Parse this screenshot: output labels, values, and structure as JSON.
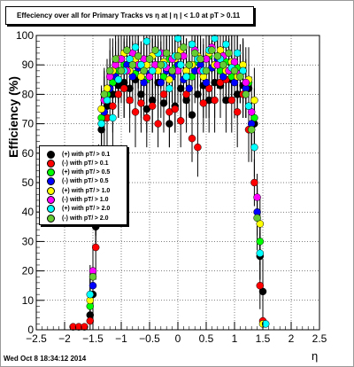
{
  "date_stamp": "Wed Oct  8 18:34:12 2014",
  "chart_data": {
    "type": "scatter",
    "title": "Effeciency over all for Primary Tracks vs   η at | η | < 1.0 at pT > 0.11",
    "xlabel": "η",
    "ylabel": "Efficiency (%)",
    "xlim": [
      -2.5,
      2.5
    ],
    "ylim": [
      0,
      100
    ],
    "xticks": [
      -2.5,
      -2,
      -1.5,
      -1,
      -0.5,
      0,
      0.5,
      1,
      1.5,
      2,
      2.5
    ],
    "xtick_labels": [
      "−2.5",
      "−2",
      "−1.5",
      "−1",
      "−0.5",
      "0",
      "0.5",
      "1",
      "1.5",
      "2",
      "2.5"
    ],
    "yticks": [
      0,
      10,
      20,
      30,
      40,
      50,
      60,
      70,
      80,
      90,
      100
    ],
    "ytick_labels": [
      "0",
      "10",
      "20",
      "30",
      "40",
      "50",
      "60",
      "70",
      "80",
      "90",
      "100"
    ],
    "grid": true,
    "legend_position": "left-middle",
    "series": [
      {
        "name": "(+) with pT/ > 0.1",
        "color": "#000000",
        "points": [
          [
            -1.55,
            5
          ],
          [
            -1.5,
            12
          ],
          [
            -1.45,
            35
          ],
          [
            -1.35,
            68
          ],
          [
            -1.25,
            76
          ],
          [
            -1.15,
            80
          ],
          [
            -1.05,
            83
          ],
          [
            -0.95,
            84
          ],
          [
            -0.85,
            82
          ],
          [
            -0.75,
            85
          ],
          [
            -0.65,
            80
          ],
          [
            -0.55,
            75
          ],
          [
            -0.45,
            78
          ],
          [
            -0.35,
            84
          ],
          [
            -0.25,
            77
          ],
          [
            -0.15,
            70
          ],
          [
            -0.05,
            76
          ],
          [
            0.05,
            82
          ],
          [
            0.15,
            78
          ],
          [
            0.25,
            73
          ],
          [
            0.35,
            80
          ],
          [
            0.45,
            83
          ],
          [
            0.55,
            78
          ],
          [
            0.65,
            84
          ],
          [
            0.75,
            83
          ],
          [
            0.85,
            78
          ],
          [
            0.95,
            85
          ],
          [
            1.05,
            80
          ],
          [
            1.15,
            83
          ],
          [
            1.25,
            82
          ],
          [
            1.35,
            70
          ],
          [
            1.45,
            25
          ],
          [
            1.5,
            13
          ]
        ]
      },
      {
        "name": "(-) with pT/ > 0.1",
        "color": "#ff0000",
        "points": [
          [
            -1.85,
            1
          ],
          [
            -1.75,
            1
          ],
          [
            -1.65,
            1
          ],
          [
            -1.55,
            3
          ],
          [
            -1.45,
            28
          ],
          [
            -1.35,
            60
          ],
          [
            -1.25,
            72
          ],
          [
            -1.15,
            76
          ],
          [
            -1.05,
            80
          ],
          [
            -0.95,
            82
          ],
          [
            -0.85,
            78
          ],
          [
            -0.75,
            74
          ],
          [
            -0.65,
            77
          ],
          [
            -0.55,
            72
          ],
          [
            -0.45,
            76
          ],
          [
            -0.35,
            70
          ],
          [
            -0.25,
            80
          ],
          [
            -0.15,
            74
          ],
          [
            -0.05,
            75
          ],
          [
            0.05,
            71
          ],
          [
            0.15,
            80
          ],
          [
            0.25,
            65
          ],
          [
            0.35,
            62
          ],
          [
            0.45,
            77
          ],
          [
            0.55,
            82
          ],
          [
            0.65,
            78
          ],
          [
            0.75,
            84
          ],
          [
            0.85,
            85
          ],
          [
            0.95,
            78
          ],
          [
            1.05,
            74
          ],
          [
            1.15,
            80
          ],
          [
            1.25,
            68
          ],
          [
            1.35,
            50
          ],
          [
            1.45,
            15
          ],
          [
            1.5,
            3
          ]
        ]
      },
      {
        "name": "(+) with pT/ > 0.5",
        "color": "#00ff00",
        "points": [
          [
            -1.55,
            8
          ],
          [
            -1.45,
            40
          ],
          [
            -1.35,
            72
          ],
          [
            -1.25,
            80
          ],
          [
            -1.15,
            84
          ],
          [
            -1.05,
            88
          ],
          [
            -0.95,
            90
          ],
          [
            -0.85,
            92
          ],
          [
            -0.75,
            87
          ],
          [
            -0.65,
            90
          ],
          [
            -0.55,
            85
          ],
          [
            -0.45,
            88
          ],
          [
            -0.35,
            90
          ],
          [
            -0.25,
            86
          ],
          [
            -0.15,
            92
          ],
          [
            -0.05,
            89
          ],
          [
            0.05,
            94
          ],
          [
            0.15,
            88
          ],
          [
            0.25,
            86
          ],
          [
            0.35,
            91
          ],
          [
            0.45,
            87
          ],
          [
            0.55,
            93
          ],
          [
            0.65,
            90
          ],
          [
            0.75,
            88
          ],
          [
            0.85,
            91
          ],
          [
            0.95,
            86
          ],
          [
            1.05,
            89
          ],
          [
            1.15,
            88
          ],
          [
            1.25,
            84
          ],
          [
            1.35,
            72
          ],
          [
            1.45,
            30
          ]
        ]
      },
      {
        "name": "(-) with pT/ > 0.5",
        "color": "#0000ff",
        "points": [
          [
            -1.5,
            15
          ],
          [
            -1.4,
            50
          ],
          [
            -1.3,
            74
          ],
          [
            -1.2,
            82
          ],
          [
            -1.1,
            86
          ],
          [
            -1.0,
            88
          ],
          [
            -0.9,
            90
          ],
          [
            -0.8,
            86
          ],
          [
            -0.7,
            89
          ],
          [
            -0.6,
            84
          ],
          [
            -0.5,
            87
          ],
          [
            -0.4,
            89
          ],
          [
            -0.3,
            84
          ],
          [
            -0.2,
            88
          ],
          [
            -0.1,
            86
          ],
          [
            0.0,
            90
          ],
          [
            0.1,
            85
          ],
          [
            0.2,
            82
          ],
          [
            0.3,
            88
          ],
          [
            0.4,
            90
          ],
          [
            0.5,
            84
          ],
          [
            0.6,
            89
          ],
          [
            0.7,
            92
          ],
          [
            0.8,
            86
          ],
          [
            0.9,
            88
          ],
          [
            1.0,
            84
          ],
          [
            1.1,
            86
          ],
          [
            1.2,
            82
          ],
          [
            1.3,
            70
          ],
          [
            1.4,
            40
          ]
        ]
      },
      {
        "name": "(+) with pT/ > 1.0",
        "color": "#ffff00",
        "points": [
          [
            -1.55,
            10
          ],
          [
            -1.45,
            42
          ],
          [
            -1.35,
            75
          ],
          [
            -1.25,
            82
          ],
          [
            -1.15,
            88
          ],
          [
            -1.05,
            92
          ],
          [
            -0.95,
            94
          ],
          [
            -0.85,
            88
          ],
          [
            -0.75,
            92
          ],
          [
            -0.65,
            86
          ],
          [
            -0.55,
            90
          ],
          [
            -0.45,
            93
          ],
          [
            -0.35,
            88
          ],
          [
            -0.25,
            91
          ],
          [
            -0.15,
            85
          ],
          [
            -0.05,
            92
          ],
          [
            0.05,
            95
          ],
          [
            0.15,
            88
          ],
          [
            0.25,
            90
          ],
          [
            0.35,
            93
          ],
          [
            0.45,
            86
          ],
          [
            0.55,
            94
          ],
          [
            0.65,
            90
          ],
          [
            0.75,
            95
          ],
          [
            0.85,
            88
          ],
          [
            0.95,
            91
          ],
          [
            1.05,
            86
          ],
          [
            1.15,
            90
          ],
          [
            1.25,
            85
          ],
          [
            1.35,
            78
          ],
          [
            1.45,
            36
          ],
          [
            1.5,
            2
          ]
        ]
      },
      {
        "name": "(-) with pT/ > 1.0",
        "color": "#ff00ff",
        "points": [
          [
            -1.5,
            20
          ],
          [
            -1.4,
            55
          ],
          [
            -1.3,
            78
          ],
          [
            -1.2,
            86
          ],
          [
            -1.1,
            90
          ],
          [
            -1.0,
            92
          ],
          [
            -0.9,
            88
          ],
          [
            -0.8,
            94
          ],
          [
            -0.7,
            90
          ],
          [
            -0.6,
            92
          ],
          [
            -0.5,
            86
          ],
          [
            -0.4,
            90
          ],
          [
            -0.3,
            94
          ],
          [
            -0.2,
            89
          ],
          [
            -0.1,
            92
          ],
          [
            0.0,
            88
          ],
          [
            0.1,
            93
          ],
          [
            0.2,
            90
          ],
          [
            0.3,
            95
          ],
          [
            0.4,
            88
          ],
          [
            0.5,
            92
          ],
          [
            0.6,
            96
          ],
          [
            0.7,
            90
          ],
          [
            0.8,
            93
          ],
          [
            0.9,
            88
          ],
          [
            1.0,
            91
          ],
          [
            1.1,
            87
          ],
          [
            1.2,
            84
          ],
          [
            1.3,
            74
          ],
          [
            1.4,
            45
          ]
        ]
      },
      {
        "name": "(+) with pT/ > 2.0",
        "color": "#00ffff",
        "points": [
          [
            -1.55,
            12
          ],
          [
            -1.45,
            45
          ],
          [
            -1.35,
            70
          ],
          [
            -1.25,
            78
          ],
          [
            -1.15,
            72
          ],
          [
            -1.05,
            85
          ],
          [
            -0.95,
            88
          ],
          [
            -0.85,
            92
          ],
          [
            -0.75,
            96
          ],
          [
            -0.65,
            90
          ],
          [
            -0.55,
            98
          ],
          [
            -0.45,
            88
          ],
          [
            -0.35,
            94
          ],
          [
            -0.25,
            90
          ],
          [
            -0.15,
            82
          ],
          [
            -0.05,
            93
          ],
          [
            0.0,
            99
          ],
          [
            0.05,
            90
          ],
          [
            0.15,
            86
          ],
          [
            0.25,
            97
          ],
          [
            0.35,
            92
          ],
          [
            0.45,
            88
          ],
          [
            0.55,
            95
          ],
          [
            0.65,
            99
          ],
          [
            0.75,
            92
          ],
          [
            0.85,
            97
          ],
          [
            0.95,
            89
          ],
          [
            1.05,
            94
          ],
          [
            1.15,
            88
          ],
          [
            1.25,
            76
          ],
          [
            1.35,
            62
          ],
          [
            1.45,
            26
          ],
          [
            1.55,
            2
          ]
        ]
      },
      {
        "name": "(-) with pT/ > 2.0",
        "color": "#66cc33",
        "points": [
          [
            -1.5,
            18
          ],
          [
            -1.4,
            52
          ],
          [
            -1.3,
            80
          ],
          [
            -1.2,
            88
          ],
          [
            -1.1,
            92
          ],
          [
            -1.0,
            88
          ],
          [
            -0.9,
            95
          ],
          [
            -0.8,
            90
          ],
          [
            -0.7,
            93
          ],
          [
            -0.6,
            88
          ],
          [
            -0.5,
            92
          ],
          [
            -0.4,
            95
          ],
          [
            -0.3,
            90
          ],
          [
            -0.2,
            94
          ],
          [
            -0.1,
            88
          ],
          [
            0.0,
            93
          ],
          [
            0.1,
            96
          ],
          [
            0.2,
            90
          ],
          [
            0.3,
            94
          ],
          [
            0.4,
            92
          ],
          [
            0.5,
            88
          ],
          [
            0.6,
            95
          ],
          [
            0.7,
            93
          ],
          [
            0.8,
            90
          ],
          [
            0.9,
            94
          ],
          [
            1.0,
            88
          ],
          [
            1.1,
            86
          ],
          [
            1.2,
            80
          ],
          [
            1.3,
            68
          ],
          [
            1.4,
            38
          ]
        ]
      }
    ]
  }
}
